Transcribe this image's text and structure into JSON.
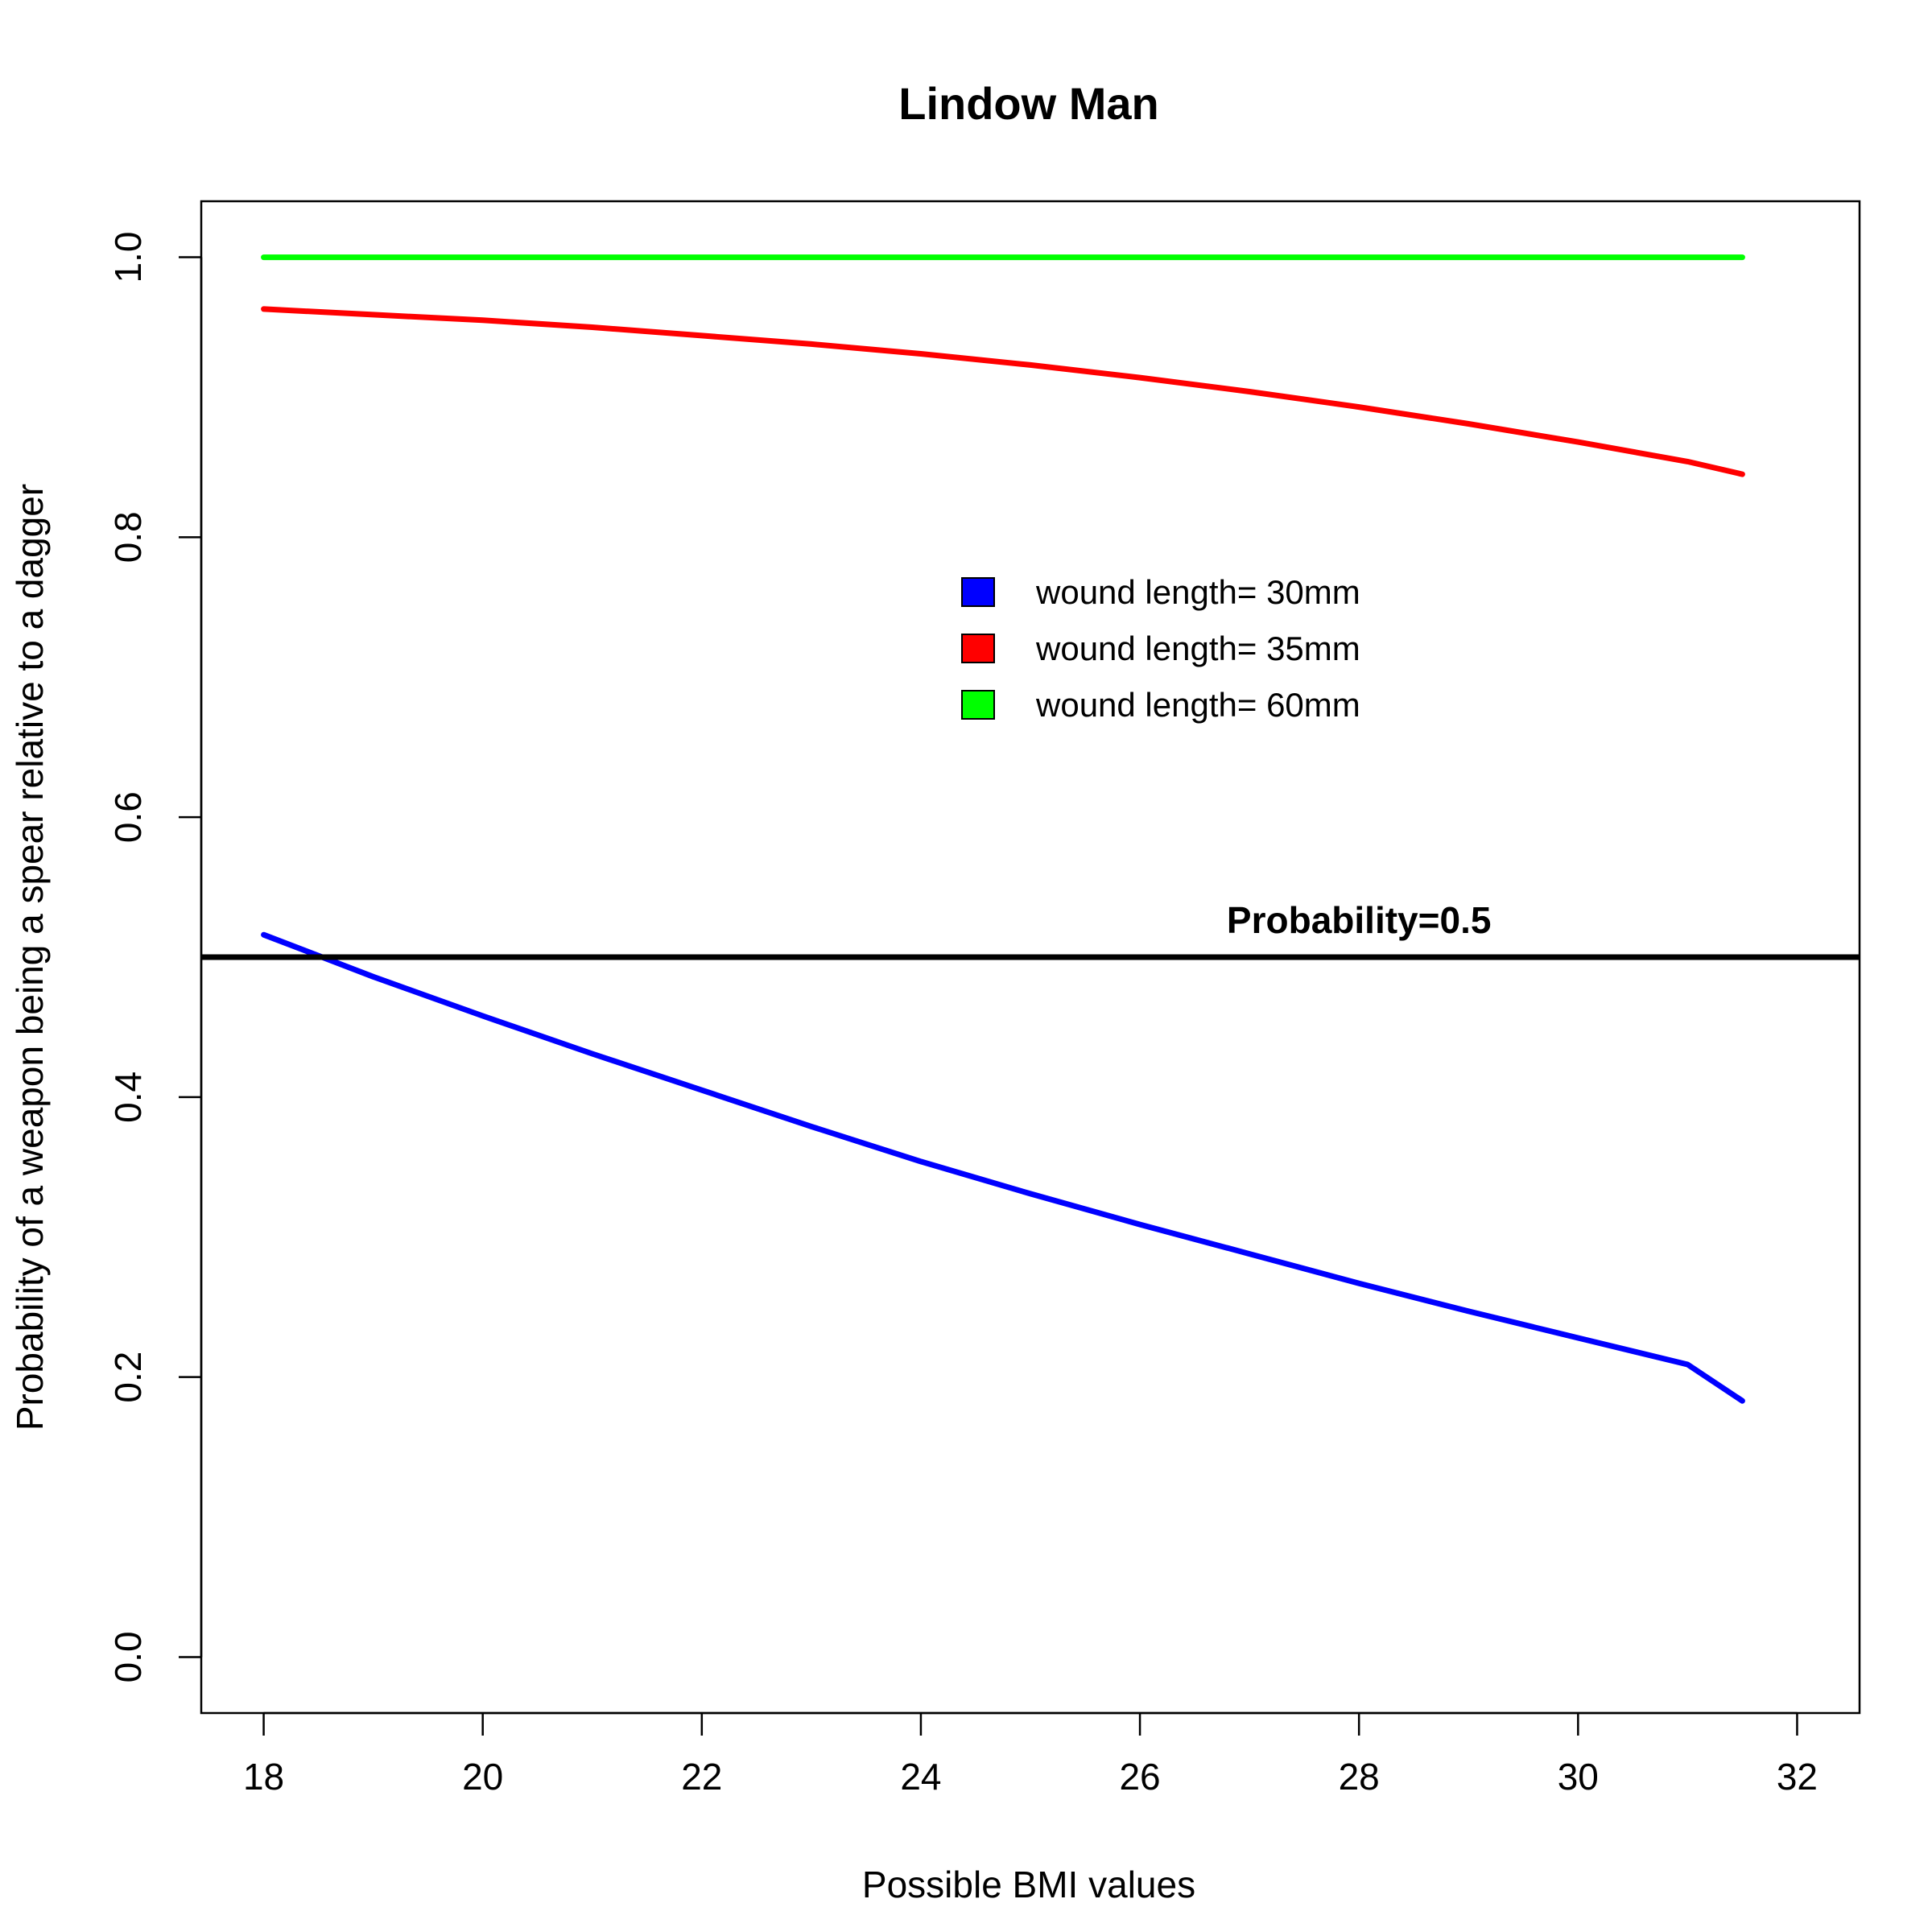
{
  "chart_data": {
    "type": "line",
    "title": "Lindow Man",
    "xlabel": "Possible BMI values",
    "ylabel": "Probability of a weapon being a spear relative to a dagger",
    "xlim": [
      17.43,
      32.57
    ],
    "ylim": [
      -0.04,
      1.04
    ],
    "xticks": [
      18,
      20,
      22,
      24,
      26,
      28,
      30,
      32
    ],
    "yticks": [
      0.0,
      0.2,
      0.4,
      0.6,
      0.8,
      1.0
    ],
    "xtick_labels": [
      "18",
      "20",
      "22",
      "24",
      "26",
      "28",
      "30",
      "32"
    ],
    "ytick_labels": [
      "0.0",
      "0.2",
      "0.4",
      "0.6",
      "0.8",
      "1.0"
    ],
    "grid": false,
    "legend_position": "center-right, upper half",
    "x": [
      18,
      19,
      20,
      21,
      22,
      23,
      24,
      25,
      26,
      27,
      28,
      29,
      30,
      31,
      31.5
    ],
    "series": [
      {
        "name": "wound length= 30mm",
        "color": "#0000ff",
        "values": [
          0.516,
          0.486,
          0.458,
          0.431,
          0.405,
          0.379,
          0.354,
          0.331,
          0.309,
          0.288,
          0.267,
          0.247,
          0.228,
          0.209,
          0.183
        ]
      },
      {
        "name": "wound length= 35mm",
        "color": "#ff0000",
        "values": [
          0.963,
          0.959,
          0.955,
          0.95,
          0.944,
          0.938,
          0.931,
          0.923,
          0.914,
          0.904,
          0.893,
          0.881,
          0.868,
          0.854,
          0.845
        ]
      },
      {
        "name": "wound length= 60mm",
        "color": "#00ff00",
        "values": [
          1.0,
          1.0,
          1.0,
          1.0,
          1.0,
          1.0,
          1.0,
          1.0,
          1.0,
          1.0,
          1.0,
          1.0,
          1.0,
          1.0,
          1.0
        ]
      }
    ],
    "reference_line": {
      "y": 0.5,
      "color": "#000000",
      "label": "Probability=0.5",
      "label_x": 28
    }
  }
}
